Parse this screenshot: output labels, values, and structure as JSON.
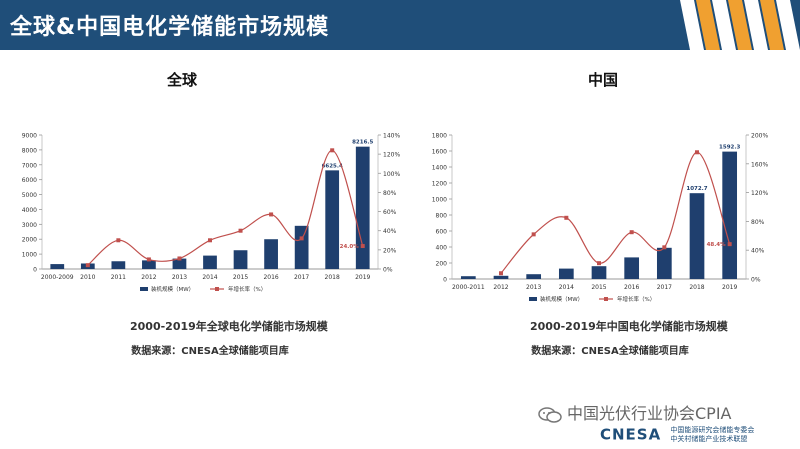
{
  "header": {
    "title": "全球&中国电化学储能市场规模"
  },
  "watermark": {
    "text": "中国光伏行业协会CPIA"
  },
  "footer": {
    "logo": "CNESA",
    "org_line1": "中国能源研究会储能专委会",
    "org_line2": "中关村储能产业技术联盟"
  },
  "chart_data": [
    {
      "type": "bar+line",
      "heading": "全球",
      "caption": "2000-2019年全球电化学储能市场规模",
      "source": "数据来源：CNESA全球储能项目库",
      "categories": [
        "2000-2009",
        "2010",
        "2011",
        "2012",
        "2013",
        "2014",
        "2015",
        "2016",
        "2017",
        "2018",
        "2019"
      ],
      "bar_values": [
        330,
        370,
        520,
        580,
        700,
        900,
        1260,
        2000,
        2900,
        6625.4,
        8216.5
      ],
      "line_values": [
        null,
        4,
        30,
        10,
        11,
        30,
        40,
        57,
        32,
        124,
        24
      ],
      "bar_labels": {
        "9": "6625.4",
        "10": "8216.5"
      },
      "line_labels": {
        "10": "24.0%"
      },
      "ylim_left": [
        0,
        9000
      ],
      "left_ticks": [
        0,
        1000,
        2000,
        3000,
        4000,
        5000,
        6000,
        7000,
        8000,
        9000
      ],
      "ylim_right": [
        0,
        140
      ],
      "right_ticks": [
        "0%",
        "20%",
        "40%",
        "60%",
        "80%",
        "100%",
        "120%",
        "140%"
      ],
      "legend": [
        "装机规模（MW）",
        "年增长率（%）"
      ],
      "bar_color": "#1f3f6e",
      "line_color": "#c0504d"
    },
    {
      "type": "bar+line",
      "heading": "中国",
      "caption": "2000-2019年中国电化学储能市场规模",
      "source": "数据来源：CNESA全球储能项目库",
      "categories": [
        "2000-2011",
        "2012",
        "2013",
        "2014",
        "2015",
        "2016",
        "2017",
        "2018",
        "2019"
      ],
      "bar_values": [
        35,
        40,
        60,
        130,
        160,
        270,
        390,
        1072.7,
        1592.3
      ],
      "line_values": [
        null,
        8,
        62,
        85,
        22,
        65,
        44,
        176,
        48.4
      ],
      "bar_labels": {
        "7": "1072.7",
        "8": "1592.3"
      },
      "line_labels": {
        "8": "48.4%"
      },
      "ylim_left": [
        0,
        1800
      ],
      "left_ticks": [
        0,
        200,
        400,
        600,
        800,
        1000,
        1200,
        1400,
        1600,
        1800
      ],
      "ylim_right": [
        0,
        200
      ],
      "right_ticks": [
        "0%",
        "40%",
        "80%",
        "120%",
        "160%",
        "200%"
      ],
      "legend": [
        "装机规模（MW）",
        "年增长率（%）"
      ],
      "bar_color": "#1f3f6e",
      "line_color": "#c0504d"
    }
  ]
}
